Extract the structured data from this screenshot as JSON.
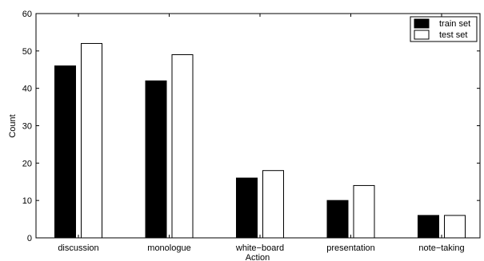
{
  "chart_data": {
    "type": "bar",
    "title": "",
    "xlabel": "Action",
    "ylabel": "Count",
    "categories": [
      "discussion",
      "monologue",
      "white−board",
      "presentation",
      "note−taking"
    ],
    "series": [
      {
        "name": "train set",
        "values": [
          46,
          42,
          16,
          10,
          6
        ],
        "color": "#000000"
      },
      {
        "name": "test set",
        "values": [
          52,
          49,
          18,
          14,
          6
        ],
        "color": "#ffffff"
      }
    ],
    "ylim": [
      0,
      60
    ],
    "yticks": [
      0,
      10,
      20,
      30,
      40,
      50,
      60
    ],
    "grid": false,
    "legend_position": "top-right"
  }
}
